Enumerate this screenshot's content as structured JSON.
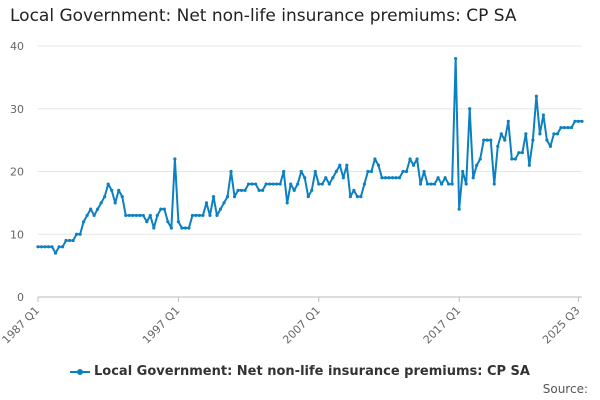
{
  "title": "Local Government: Net non-life insurance premiums: CP SA",
  "source_label": "Source:",
  "colors": {
    "series": "#0c80c0",
    "grid": "#e6e6e6",
    "axis": "#bbbbbb",
    "text": "#666666"
  },
  "chart_data": {
    "type": "line",
    "title": "Local Government: Net non-life insurance premiums: CP SA",
    "xlabel": "",
    "ylabel": "",
    "ylim": [
      0,
      40
    ],
    "yticks": [
      0,
      10,
      20,
      30,
      40
    ],
    "x_range": [
      "1987 Q1",
      "2025 Q3"
    ],
    "xtick_labels": [
      "1987 Q1",
      "1997 Q1",
      "2007 Q1",
      "2017 Q1",
      "2025 Q3"
    ],
    "grid": true,
    "legend": "bottom-center",
    "series": [
      {
        "name": "Local Government: Net non-life insurance premiums: CP SA",
        "values": [
          8,
          8,
          8,
          8,
          8,
          7,
          8,
          8,
          9,
          9,
          9,
          10,
          10,
          12,
          13,
          14,
          13,
          14,
          15,
          16,
          18,
          17,
          15,
          17,
          16,
          13,
          13,
          13,
          13,
          13,
          13,
          12,
          13,
          11,
          13,
          14,
          14,
          12,
          11,
          22,
          12,
          11,
          11,
          11,
          13,
          13,
          13,
          13,
          15,
          13,
          16,
          13,
          14,
          15,
          16,
          20,
          16,
          17,
          17,
          17,
          18,
          18,
          18,
          17,
          17,
          18,
          18,
          18,
          18,
          18,
          20,
          15,
          18,
          17,
          18,
          20,
          19,
          16,
          17,
          20,
          18,
          18,
          19,
          18,
          19,
          20,
          21,
          19,
          21,
          16,
          17,
          16,
          16,
          18,
          20,
          20,
          22,
          21,
          19,
          19,
          19,
          19,
          19,
          19,
          20,
          20,
          22,
          21,
          22,
          18,
          20,
          18,
          18,
          18,
          19,
          18,
          19,
          18,
          18,
          38,
          14,
          20,
          18,
          30,
          19,
          21,
          22,
          25,
          25,
          25,
          18,
          24,
          26,
          25,
          28,
          22,
          22,
          23,
          23,
          26,
          21,
          25,
          32,
          26,
          29,
          25,
          24,
          26,
          26,
          27,
          27,
          27,
          27,
          28,
          28,
          28
        ]
      }
    ]
  }
}
